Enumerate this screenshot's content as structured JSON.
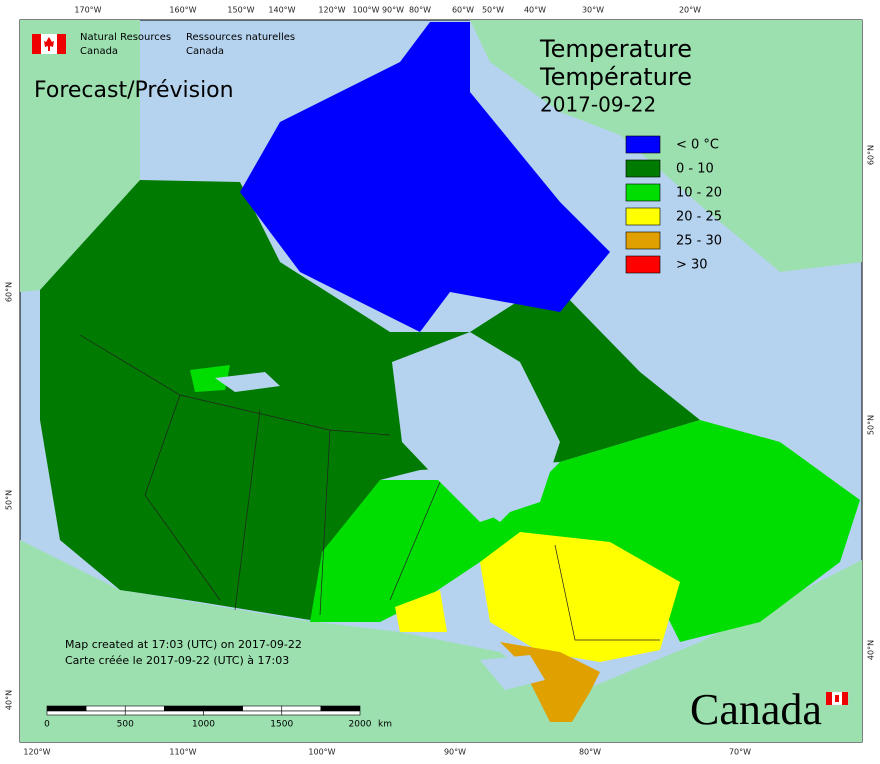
{
  "agency": {
    "en_line1": "Natural Resources",
    "en_line2": "Canada",
    "fr_line1": "Ressources naturelles",
    "fr_line2": "Canada"
  },
  "map": {
    "subtitle": "Forecast/Prévision",
    "title_en": "Temperature",
    "title_fr": "Température",
    "date": "2017-09-22",
    "legend": [
      {
        "label": "< 0 °C",
        "color": "#0000ff"
      },
      {
        "label": "0 - 10",
        "color": "#007a00"
      },
      {
        "label": "10 - 20",
        "color": "#00dd00"
      },
      {
        "label": "20 - 25",
        "color": "#ffff00"
      },
      {
        "label": "25 - 30",
        "color": "#e0a000"
      },
      {
        "label": "> 30",
        "color": "#ff0000"
      }
    ],
    "footer": [
      "Map created at 17:03 (UTC) on 2017-09-22",
      "Carte créée le 2017-09-22 (UTC) à 17:03"
    ],
    "scale_bar": {
      "labels": [
        0,
        500,
        1000,
        1500,
        2000
      ],
      "unit": "km"
    },
    "graticule": {
      "top": [
        "170°W",
        "160°W",
        "150°W",
        "140°W",
        "120°W",
        "100°W",
        "90°W",
        "80°W",
        "60°W",
        "50°W",
        "40°W",
        "30°W",
        "20°W"
      ],
      "bottom": [
        "120°W",
        "110°W",
        "100°W",
        "90°W",
        "80°W",
        "70°W"
      ],
      "left": [
        "60°N",
        "50°N",
        "40°N"
      ],
      "right": [
        "60°N",
        "50°N",
        "40°N"
      ]
    }
  },
  "wordmark": "Canada"
}
